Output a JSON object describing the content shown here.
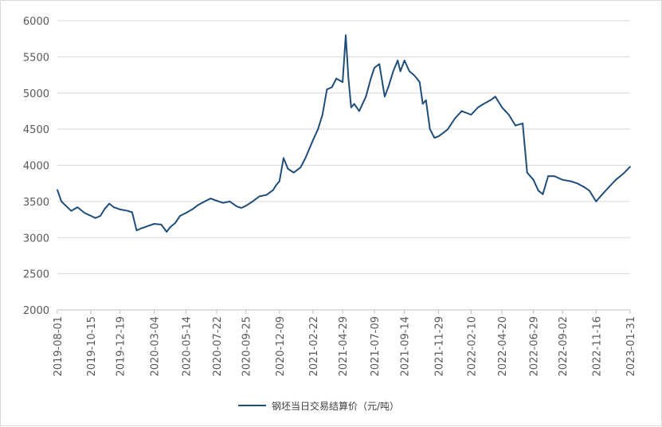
{
  "chart_data": {
    "type": "line",
    "title": "",
    "xlabel": "",
    "ylabel": "",
    "ylim": [
      2000,
      6000
    ],
    "y_ticks": [
      2000,
      2500,
      3000,
      3500,
      4000,
      4500,
      5000,
      5500,
      6000
    ],
    "x_ticks": [
      "2019-08-01",
      "2019-10-15",
      "2019-12-19",
      "2020-03-04",
      "2020-05-14",
      "2020-07-22",
      "2020-09-25",
      "2020-12-09",
      "2021-02-22",
      "2021-04-29",
      "2021-07-09",
      "2021-09-14",
      "2021-11-29",
      "2022-02-10",
      "2022-04-20",
      "2022-06-29",
      "2022-09-02",
      "2022-11-16",
      "2023-01-31"
    ],
    "grid": "horizontal",
    "legend_position": "bottom",
    "line_color": "#1f4e79",
    "series": [
      {
        "name": "钢坯当日交易结算价（元/吨）",
        "x": [
          "2019-08-01",
          "2019-08-10",
          "2019-08-20",
          "2019-09-01",
          "2019-09-15",
          "2019-10-01",
          "2019-10-15",
          "2019-10-25",
          "2019-11-05",
          "2019-11-15",
          "2019-11-25",
          "2019-12-05",
          "2019-12-19",
          "2020-01-05",
          "2020-01-15",
          "2020-01-25",
          "2020-02-05",
          "2020-02-15",
          "2020-03-04",
          "2020-03-20",
          "2020-04-01",
          "2020-04-10",
          "2020-04-20",
          "2020-05-01",
          "2020-05-14",
          "2020-05-28",
          "2020-06-10",
          "2020-06-25",
          "2020-07-08",
          "2020-07-22",
          "2020-08-05",
          "2020-08-20",
          "2020-09-05",
          "2020-09-15",
          "2020-09-25",
          "2020-10-10",
          "2020-10-25",
          "2020-11-10",
          "2020-11-25",
          "2020-12-01",
          "2020-12-09",
          "2020-12-18",
          "2020-12-28",
          "2021-01-10",
          "2021-01-25",
          "2021-02-05",
          "2021-02-22",
          "2021-03-05",
          "2021-03-15",
          "2021-03-25",
          "2021-04-05",
          "2021-04-15",
          "2021-04-29",
          "2021-05-06",
          "2021-05-12",
          "2021-05-18",
          "2021-05-25",
          "2021-06-05",
          "2021-06-20",
          "2021-07-01",
          "2021-07-09",
          "2021-07-20",
          "2021-08-01",
          "2021-08-10",
          "2021-08-20",
          "2021-08-30",
          "2021-09-05",
          "2021-09-14",
          "2021-09-25",
          "2021-10-05",
          "2021-10-12",
          "2021-10-18",
          "2021-10-25",
          "2021-11-01",
          "2021-11-10",
          "2021-11-20",
          "2021-11-29",
          "2021-12-10",
          "2021-12-20",
          "2022-01-05",
          "2022-01-20",
          "2022-02-10",
          "2022-02-25",
          "2022-03-10",
          "2022-03-25",
          "2022-04-05",
          "2022-04-20",
          "2022-05-05",
          "2022-05-20",
          "2022-06-05",
          "2022-06-15",
          "2022-06-29",
          "2022-07-10",
          "2022-07-20",
          "2022-08-01",
          "2022-08-15",
          "2022-09-02",
          "2022-09-20",
          "2022-10-05",
          "2022-10-20",
          "2022-11-01",
          "2022-11-16",
          "2022-11-30",
          "2022-12-15",
          "2022-12-30",
          "2023-01-15",
          "2023-01-31"
        ],
        "values": [
          3660,
          3500,
          3440,
          3370,
          3420,
          3340,
          3300,
          3270,
          3300,
          3400,
          3470,
          3420,
          3390,
          3370,
          3350,
          3100,
          3130,
          3150,
          3190,
          3180,
          3080,
          3150,
          3200,
          3300,
          3340,
          3390,
          3450,
          3500,
          3540,
          3510,
          3480,
          3500,
          3430,
          3410,
          3440,
          3500,
          3570,
          3590,
          3660,
          3720,
          3780,
          4100,
          3950,
          3900,
          3970,
          4100,
          4350,
          4500,
          4700,
          5050,
          5080,
          5200,
          5150,
          5800,
          5200,
          4800,
          4850,
          4750,
          4950,
          5200,
          5350,
          5400,
          4950,
          5100,
          5300,
          5450,
          5300,
          5450,
          5300,
          5250,
          5200,
          5150,
          4850,
          4900,
          4500,
          4380,
          4400,
          4450,
          4500,
          4650,
          4750,
          4700,
          4800,
          4850,
          4900,
          4950,
          4800,
          4700,
          4550,
          4580,
          3900,
          3800,
          3650,
          3600,
          3850,
          3850,
          3800,
          3780,
          3750,
          3700,
          3650,
          3500,
          3600,
          3700,
          3800,
          3880,
          3980
        ]
      }
    ]
  }
}
